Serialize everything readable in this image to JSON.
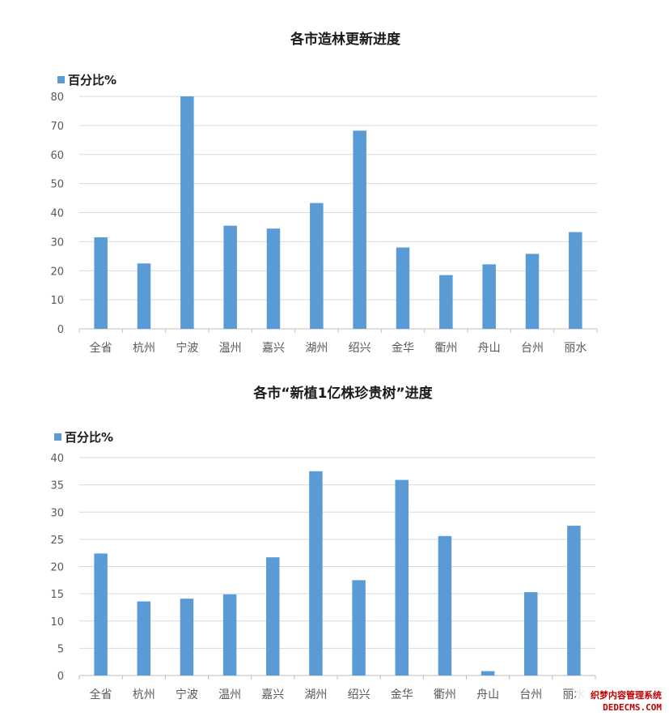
{
  "chart_data": [
    {
      "type": "bar",
      "title": "各市造林更新进度",
      "legend": "百分比%",
      "legend_position": "top-left",
      "grid": true,
      "color": "#5b9bd5",
      "ylim": [
        0,
        80
      ],
      "yticks": [
        0,
        10,
        20,
        30,
        40,
        50,
        60,
        70,
        80
      ],
      "categories": [
        "全省",
        "杭州",
        "宁波",
        "温州",
        "嘉兴",
        "湖州",
        "绍兴",
        "金华",
        "衢州",
        "舟山",
        "台州",
        "丽水"
      ],
      "series": [
        {
          "name": "百分比%",
          "values": [
            31.5,
            22.5,
            80,
            35.5,
            34.5,
            43.3,
            68.2,
            28,
            18.5,
            22.2,
            25.8,
            33.3
          ]
        }
      ]
    },
    {
      "type": "bar",
      "title": "各市“新植1亿株珍贵树”进度",
      "legend": "百分比%",
      "legend_position": "top-left",
      "grid": true,
      "color": "#5b9bd5",
      "ylim": [
        0,
        40
      ],
      "yticks": [
        0,
        5,
        10,
        15,
        20,
        25,
        30,
        35,
        40
      ],
      "categories": [
        "全省",
        "杭州",
        "宁波",
        "温州",
        "嘉兴",
        "湖州",
        "绍兴",
        "金华",
        "衢州",
        "舟山",
        "台州",
        "丽水"
      ],
      "series": [
        {
          "name": "百分比%",
          "values": [
            22.4,
            13.6,
            14.1,
            14.9,
            21.7,
            37.5,
            17.5,
            35.9,
            25.6,
            0.8,
            15.3,
            27.5
          ]
        }
      ]
    }
  ],
  "watermark": {
    "line1": "织梦内容管理系统",
    "line2": "DEDECMS.COM",
    "color": "#c00000"
  }
}
